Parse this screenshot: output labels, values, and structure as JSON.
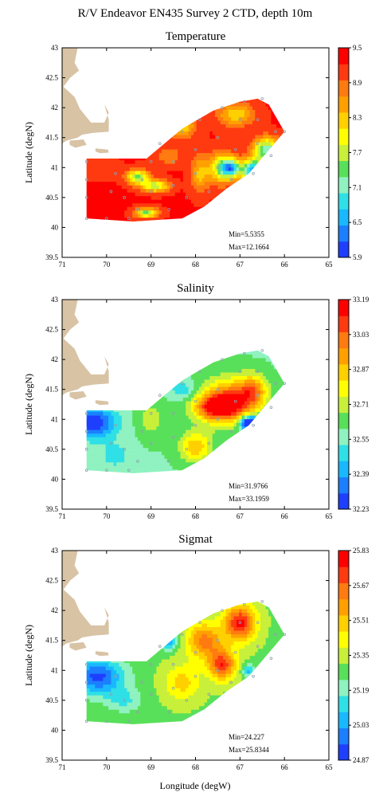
{
  "figure": {
    "title": "R/V Endeavor EN435 Survey 2 CTD, depth 10m",
    "xlabel": "Longitude (degW)",
    "ylabel": "Latitude (degN)"
  },
  "colors": {
    "land": "#d8c3a5",
    "station": "#8fa0b0",
    "colormap": [
      "#1f3fff",
      "#1b7fff",
      "#19b8ff",
      "#2fe0e6",
      "#8ff2c0",
      "#59e05a",
      "#c8f03a",
      "#ffff00",
      "#ffd000",
      "#ffa000",
      "#ff7a10",
      "#ff3a10",
      "#ff0000"
    ]
  },
  "chart_data": [
    {
      "type": "heatmap",
      "title": "Temperature",
      "xlim": [
        71,
        65
      ],
      "ylim": [
        39.5,
        43
      ],
      "x_ticks": [
        "71",
        "70",
        "69",
        "68",
        "67",
        "66",
        "65"
      ],
      "y_ticks": [
        "39.5",
        "40",
        "40.5",
        "41",
        "41.5",
        "42",
        "42.5",
        "43"
      ],
      "colorbar_ticks": [
        "5.9",
        "6.5",
        "7.1",
        "7.7",
        "8.3",
        "8.9",
        "9.5"
      ],
      "colorbar_range": [
        5.9,
        9.5
      ],
      "min_text": "Min=5.5355",
      "max_text": "Max=12.1664",
      "grid": false
    },
    {
      "type": "heatmap",
      "title": "Salinity",
      "xlim": [
        71,
        65
      ],
      "ylim": [
        39.5,
        43
      ],
      "x_ticks": [
        "71",
        "70",
        "69",
        "68",
        "67",
        "66",
        "65"
      ],
      "y_ticks": [
        "39.5",
        "40",
        "40.5",
        "41",
        "41.5",
        "42",
        "42.5",
        "43"
      ],
      "colorbar_ticks": [
        "32.23",
        "32.39",
        "32.55",
        "32.71",
        "32.87",
        "33.03",
        "33.19"
      ],
      "colorbar_range": [
        32.23,
        33.19
      ],
      "min_text": "Min=31.9766",
      "max_text": "Max=33.1959",
      "grid": false
    },
    {
      "type": "heatmap",
      "title": "Sigmat",
      "xlim": [
        71,
        65
      ],
      "ylim": [
        39.5,
        43
      ],
      "x_ticks": [
        "71",
        "70",
        "69",
        "68",
        "67",
        "66",
        "65"
      ],
      "y_ticks": [
        "39.5",
        "40",
        "40.5",
        "41",
        "41.5",
        "42",
        "42.5",
        "43"
      ],
      "colorbar_ticks": [
        "24.87",
        "25.03",
        "25.19",
        "25.35",
        "25.51",
        "25.67",
        "25.83"
      ],
      "colorbar_range": [
        24.87,
        25.83
      ],
      "min_text": "Min=24.227",
      "max_text": "Max=25.8344",
      "grid": false
    }
  ]
}
